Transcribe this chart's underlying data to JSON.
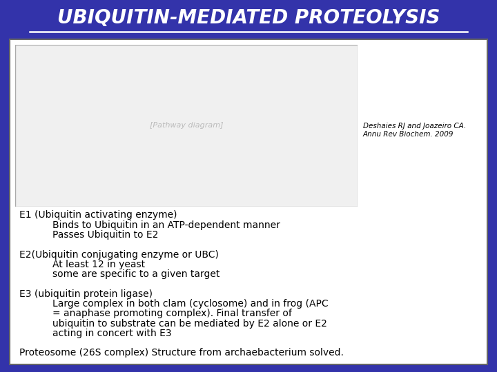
{
  "title": "UBIQUITIN-MEDIATED PROTEOLYSIS",
  "title_color": "#FFFFFF",
  "title_bg_color": "#3333AA",
  "title_fontsize": 20,
  "bg_color": "#3333AA",
  "box_bg_color": "#FFFFFF",
  "text_color": "#000000",
  "reference_text": "Deshaies RJ and Joazeiro CA.\nAnnu Rev Biochem. 2009",
  "reference_fontsize": 7.5,
  "content_lines": [
    {
      "text": "E1 (Ubiquitin activating enzyme)",
      "indent": 0,
      "fontsize": 10
    },
    {
      "text": "Binds to Ubiquitin in an ATP-dependent manner",
      "indent": 1,
      "fontsize": 10
    },
    {
      "text": "Passes Ubiquitin to E2",
      "indent": 1,
      "fontsize": 10
    },
    {
      "text": "",
      "indent": 0,
      "fontsize": 10
    },
    {
      "text": "E2(Ubiquitin conjugating enzyme or UBC)",
      "indent": 0,
      "fontsize": 10
    },
    {
      "text": "At least 12 in yeast",
      "indent": 1,
      "fontsize": 10
    },
    {
      "text": "some are specific to a given target",
      "indent": 1,
      "fontsize": 10
    },
    {
      "text": "",
      "indent": 0,
      "fontsize": 10
    },
    {
      "text": "E3 (ubiquitin protein ligase)",
      "indent": 0,
      "fontsize": 10
    },
    {
      "text": "Large complex in both clam (cyclosome) and in frog (APC",
      "indent": 1,
      "fontsize": 10
    },
    {
      "text": "= anaphase promoting complex). Final transfer of",
      "indent": 1,
      "fontsize": 10
    },
    {
      "text": "ubiquitin to substrate can be mediated by E2 alone or E2",
      "indent": 1,
      "fontsize": 10
    },
    {
      "text": "acting in concert with E3",
      "indent": 1,
      "fontsize": 10
    },
    {
      "text": "",
      "indent": 0,
      "fontsize": 10
    },
    {
      "text": "Proteosome (26S complex) Structure from archaebacterium solved.",
      "indent": 0,
      "fontsize": 10
    }
  ],
  "image_placeholder_color": "#F0F0F0",
  "figsize": [
    7.2,
    5.4
  ],
  "dpi": 100
}
